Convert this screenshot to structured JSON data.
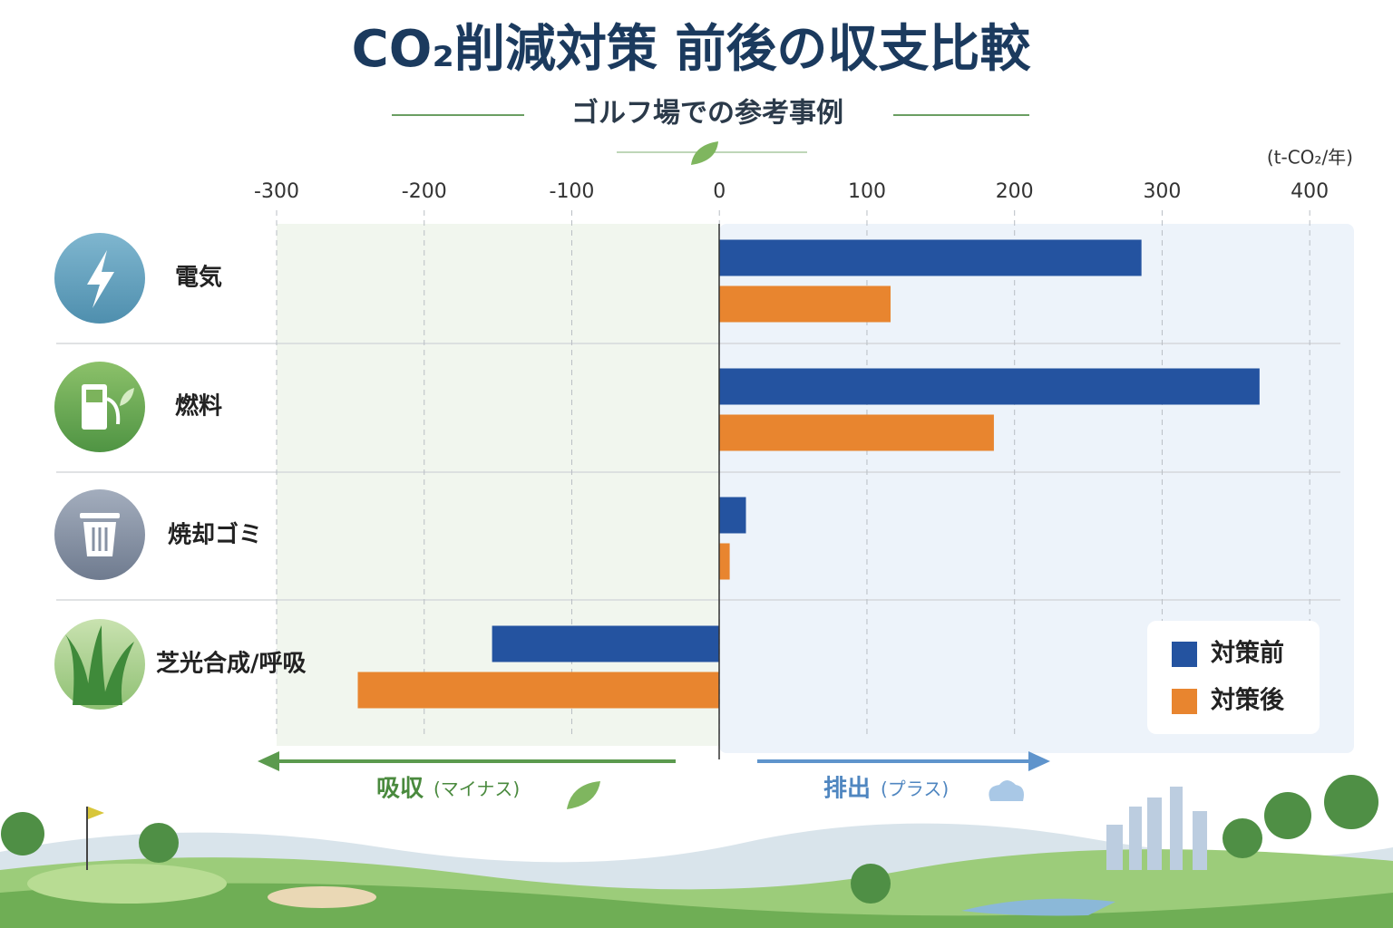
{
  "chart_data": {
    "type": "bar",
    "orientation": "horizontal",
    "title": "CO₂削減対策 前後の収支比較",
    "subtitle": "ゴルフ場での参考事例",
    "unit": "(t-CO₂/年)",
    "categories": [
      "電気",
      "燃料",
      "焼却ゴミ",
      "芝光合成/呼吸"
    ],
    "series": [
      {
        "name": "対策前",
        "color": "#2453a0",
        "values": [
          286,
          366,
          18,
          -154
        ]
      },
      {
        "name": "対策後",
        "color": "#e8852f",
        "values": [
          116,
          186,
          7,
          -245
        ]
      }
    ],
    "xlim": [
      -300,
      430
    ],
    "xticks": [
      -300,
      -200,
      -100,
      0,
      100,
      200,
      300,
      400
    ],
    "grid": true,
    "legend": "lower right",
    "annotations": {
      "left_label": "吸収",
      "left_note": "(マイナス)",
      "right_label": "排出",
      "right_note": "(プラス)"
    }
  }
}
